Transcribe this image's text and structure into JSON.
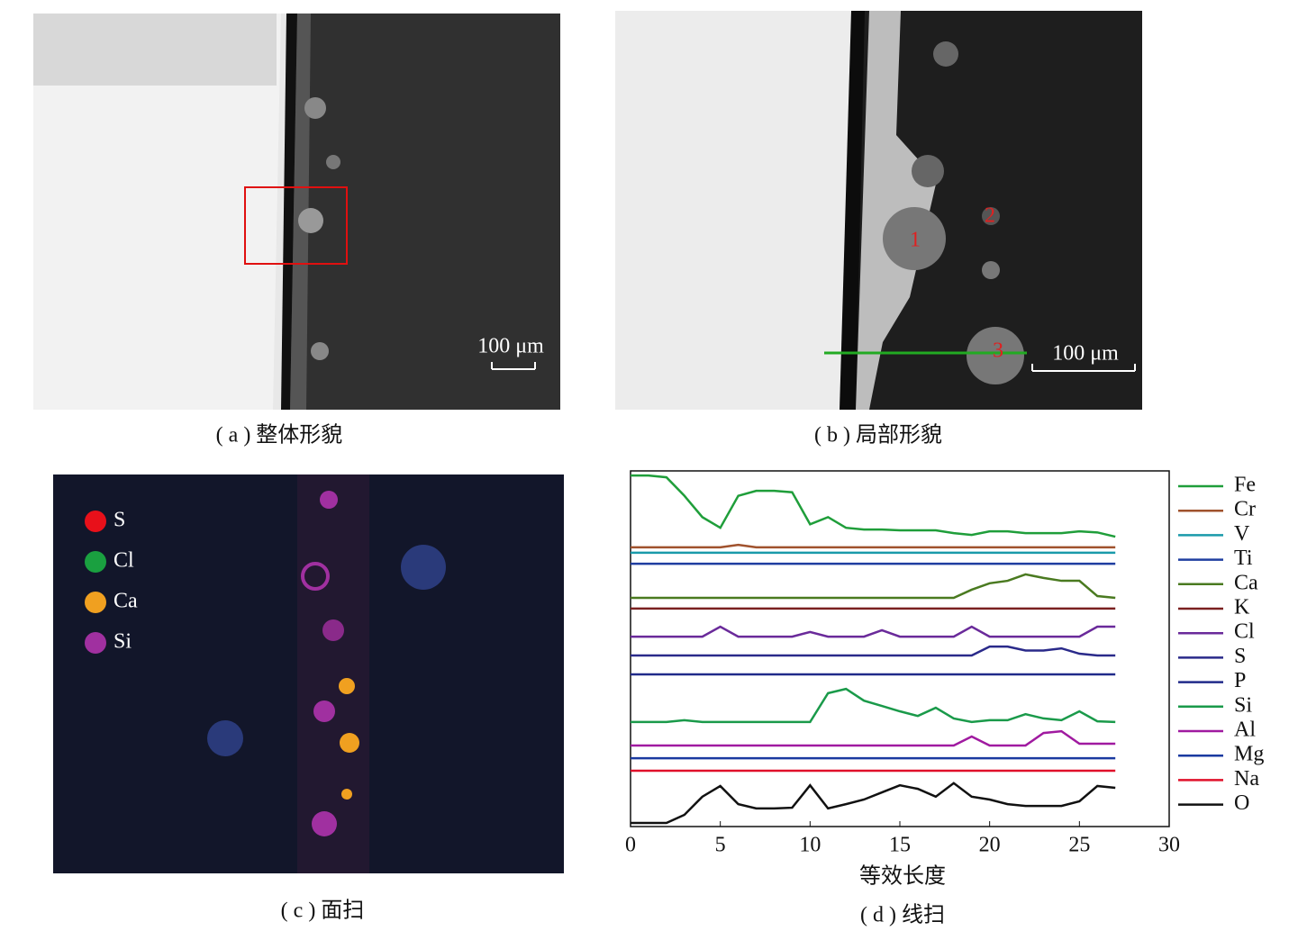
{
  "panels": {
    "a": {
      "caption": "( a ) 整体形貌",
      "scale_bar": "100 μm"
    },
    "b": {
      "caption": "( b ) 局部形貌",
      "scale_bar": "100 μm",
      "points": [
        "1",
        "2",
        "3"
      ]
    },
    "c": {
      "caption": "( c ) 面扫",
      "legend": [
        {
          "name": "S",
          "color": "#e8101a"
        },
        {
          "name": "Cl",
          "color": "#1aa040"
        },
        {
          "name": "Ca",
          "color": "#f0a020"
        },
        {
          "name": "Si",
          "color": "#a030a0"
        }
      ]
    }
  },
  "chart_data": {
    "type": "line",
    "caption": "( d ) 线扫",
    "x_label": "等效长度",
    "xlim": [
      0,
      30
    ],
    "xticks": [
      0,
      5,
      10,
      15,
      20,
      25,
      30
    ],
    "ylim": [
      0,
      100
    ],
    "x": [
      0,
      1,
      2,
      3,
      4,
      5,
      6,
      7,
      8,
      9,
      10,
      11,
      12,
      13,
      14,
      15,
      16,
      17,
      18,
      19,
      20,
      21,
      22,
      23,
      24,
      25,
      26,
      27
    ],
    "series": [
      {
        "name": "Fe",
        "color": "#1f9e3a",
        "values": [
          98.7,
          98.7,
          98.2,
          93,
          87,
          84,
          93,
          94.4,
          94.4,
          94,
          85,
          87,
          84,
          83.5,
          83.5,
          83.3,
          83.3,
          83.3,
          82.5,
          82,
          83,
          83,
          82.5,
          82.5,
          82.5,
          83,
          82.7,
          81.5
        ]
      },
      {
        "name": "Cr",
        "color": "#a0522d",
        "values": [
          78.5,
          78.5,
          78.5,
          78.5,
          78.5,
          78.5,
          79.2,
          78.5,
          78.5,
          78.5,
          78.5,
          78.5,
          78.5,
          78.5,
          78.5,
          78.5,
          78.5,
          78.5,
          78.5,
          78.5,
          78.5,
          78.5,
          78.5,
          78.5,
          78.5,
          78.5,
          78.5,
          78.5
        ]
      },
      {
        "name": "V",
        "color": "#1a9aaa",
        "values": [
          77,
          77,
          77,
          77,
          77,
          77,
          77,
          77,
          77,
          77,
          77,
          77,
          77,
          77,
          77,
          77,
          77,
          77,
          77,
          77,
          77,
          77,
          77,
          77,
          77,
          77,
          77,
          77
        ]
      },
      {
        "name": "Ti",
        "color": "#1f3ea0",
        "values": [
          73.9,
          73.9,
          73.9,
          73.9,
          73.9,
          73.9,
          73.9,
          73.9,
          73.9,
          73.9,
          73.9,
          73.9,
          73.9,
          73.9,
          73.9,
          73.9,
          73.9,
          73.9,
          73.9,
          73.9,
          73.9,
          73.9,
          73.9,
          73.9,
          73.9,
          73.9,
          73.9,
          73.9
        ]
      },
      {
        "name": "Ca",
        "color": "#4a7a20",
        "values": [
          64.3,
          64.3,
          64.3,
          64.3,
          64.3,
          64.3,
          64.3,
          64.3,
          64.3,
          64.3,
          64.3,
          64.3,
          64.3,
          64.3,
          64.3,
          64.3,
          64.3,
          64.3,
          64.3,
          66.6,
          68.4,
          69.1,
          70.9,
          69.9,
          69.1,
          69.1,
          64.8,
          64.3
        ]
      },
      {
        "name": "K",
        "color": "#7a2020",
        "values": [
          61.3,
          61.3,
          61.3,
          61.3,
          61.3,
          61.3,
          61.3,
          61.3,
          61.3,
          61.3,
          61.3,
          61.3,
          61.3,
          61.3,
          61.3,
          61.3,
          61.3,
          61.3,
          61.3,
          61.3,
          61.3,
          61.3,
          61.3,
          61.3,
          61.3,
          61.3,
          61.3,
          61.3
        ]
      },
      {
        "name": "Cl",
        "color": "#6a2a9a",
        "values": [
          53.4,
          53.4,
          53.4,
          53.4,
          53.4,
          56.2,
          53.4,
          53.4,
          53.4,
          53.4,
          54.7,
          53.4,
          53.4,
          53.4,
          55.2,
          53.4,
          53.4,
          53.4,
          53.4,
          56.2,
          53.4,
          53.4,
          53.4,
          53.4,
          53.4,
          53.4,
          56.2,
          56.2
        ]
      },
      {
        "name": "S",
        "color": "#2a2a8a",
        "values": [
          48.1,
          48.1,
          48.1,
          48.1,
          48.1,
          48.1,
          48.1,
          48.1,
          48.1,
          48.1,
          48.1,
          48.1,
          48.1,
          48.1,
          48.1,
          48.1,
          48.1,
          48.1,
          48.1,
          48.1,
          50.6,
          50.6,
          49.5,
          49.5,
          50.1,
          48.6,
          48.1,
          48.1
        ]
      },
      {
        "name": "P",
        "color": "#202a8a",
        "values": [
          42.8,
          42.8,
          42.8,
          42.8,
          42.8,
          42.8,
          42.8,
          42.8,
          42.8,
          42.8,
          42.8,
          42.8,
          42.8,
          42.8,
          42.8,
          42.8,
          42.8,
          42.8,
          42.8,
          42.8,
          42.8,
          42.8,
          42.8,
          42.8,
          42.8,
          42.8,
          42.8,
          42.8
        ]
      },
      {
        "name": "Si",
        "color": "#1a9a4a",
        "values": [
          29.4,
          29.4,
          29.4,
          29.9,
          29.4,
          29.4,
          29.4,
          29.4,
          29.4,
          29.4,
          29.4,
          37.5,
          38.7,
          35.4,
          33.9,
          32.4,
          31.1,
          33.4,
          30.4,
          29.4,
          29.9,
          29.9,
          31.6,
          30.4,
          29.9,
          32.4,
          29.6,
          29.4
        ]
      },
      {
        "name": "Al",
        "color": "#a01aa0",
        "values": [
          22.8,
          22.8,
          22.8,
          22.8,
          22.8,
          22.8,
          22.8,
          22.8,
          22.8,
          22.8,
          22.8,
          22.8,
          22.8,
          22.8,
          22.8,
          22.8,
          22.8,
          22.8,
          22.8,
          25.3,
          22.8,
          22.8,
          22.8,
          26.3,
          26.8,
          23.3,
          23.3,
          23.3
        ]
      },
      {
        "name": "Mg",
        "color": "#1a3aa0",
        "values": [
          19.2,
          19.2,
          19.2,
          19.2,
          19.2,
          19.2,
          19.2,
          19.2,
          19.2,
          19.2,
          19.2,
          19.2,
          19.2,
          19.2,
          19.2,
          19.2,
          19.2,
          19.2,
          19.2,
          19.2,
          19.2,
          19.2,
          19.2,
          19.2,
          19.2,
          19.2,
          19.2,
          19.2
        ]
      },
      {
        "name": "Na",
        "color": "#e0102a",
        "values": [
          15.7,
          15.7,
          15.7,
          15.7,
          15.7,
          15.7,
          15.7,
          15.7,
          15.7,
          15.7,
          15.7,
          15.7,
          15.7,
          15.7,
          15.7,
          15.7,
          15.7,
          15.7,
          15.7,
          15.7,
          15.7,
          15.7,
          15.7,
          15.7,
          15.7,
          15.7,
          15.7,
          15.7
        ]
      },
      {
        "name": "O",
        "color": "#111111",
        "values": [
          1,
          1,
          1,
          3.3,
          8.4,
          11.4,
          6.3,
          5.1,
          5.1,
          5.3,
          11.6,
          5.1,
          6.3,
          7.6,
          9.6,
          11.6,
          10.6,
          8.4,
          12.2,
          8.4,
          7.6,
          6.3,
          5.8,
          5.8,
          5.8,
          7.1,
          11.4,
          10.9
        ]
      }
    ]
  }
}
